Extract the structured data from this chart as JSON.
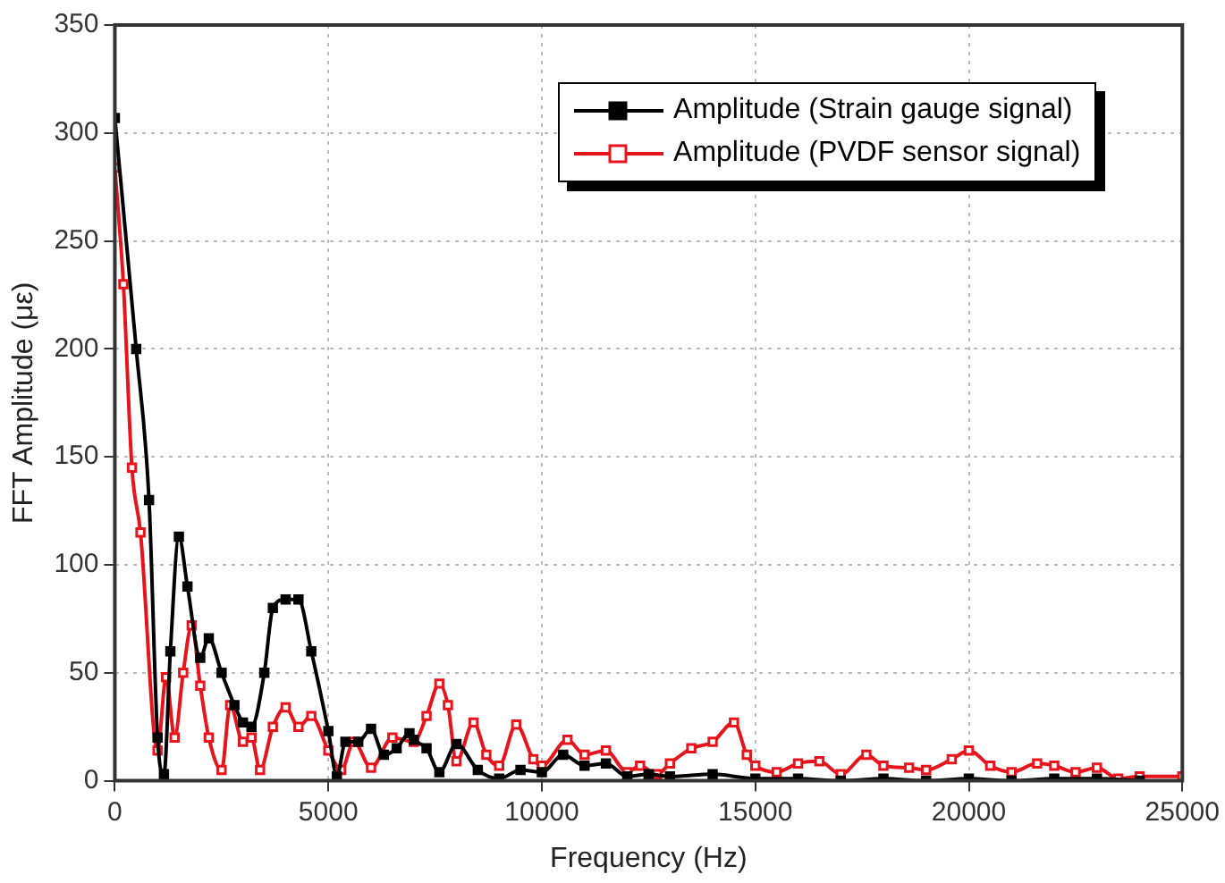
{
  "chart_data": {
    "type": "line",
    "xlabel": "Frequency (Hz)",
    "ylabel": "FFT Amplitude (με)",
    "xlim": [
      0,
      25000
    ],
    "ylim": [
      0,
      350
    ],
    "xticks": [
      0,
      5000,
      10000,
      15000,
      20000,
      25000
    ],
    "yticks": [
      0,
      50,
      100,
      150,
      200,
      250,
      300,
      350
    ],
    "grid": true,
    "legend": "top right",
    "marker": "square",
    "line_style": "solid",
    "series": [
      {
        "name": "Amplitude (Strain gauge signal)",
        "color": "#000000",
        "x": [
          0,
          500,
          800,
          1000,
          1150,
          1300,
          1500,
          1700,
          2000,
          2200,
          2500,
          2800,
          3000,
          3200,
          3500,
          3700,
          4000,
          4300,
          4600,
          5000,
          5200,
          5400,
          5700,
          6000,
          6300,
          6600,
          6900,
          7000,
          7300,
          7600,
          8000,
          8500,
          9000,
          9500,
          10000,
          10500,
          11000,
          11500,
          12000,
          12500,
          13000,
          14000,
          15000,
          16000,
          17000,
          18000,
          19000,
          20000,
          21000,
          22000,
          23000,
          24000
        ],
        "values": [
          307,
          200,
          130,
          20,
          3,
          60,
          113,
          90,
          57,
          66,
          50,
          35,
          27,
          25,
          50,
          80,
          84,
          84,
          60,
          23,
          2,
          18,
          18,
          24,
          12,
          15,
          22,
          19,
          15,
          4,
          17,
          5,
          1,
          5,
          4,
          12,
          7,
          8,
          2,
          3,
          2,
          3,
          1,
          1,
          0,
          1,
          0,
          1,
          0,
          1,
          1,
          0
        ]
      },
      {
        "name": "Amplitude (PVDF sensor signal)",
        "color": "#e8141c",
        "x": [
          0,
          200,
          400,
          600,
          1000,
          1200,
          1400,
          1600,
          1800,
          2000,
          2200,
          2500,
          2700,
          3000,
          3200,
          3400,
          3700,
          4000,
          4300,
          4600,
          5000,
          5300,
          5600,
          6000,
          6500,
          7000,
          7300,
          7600,
          7800,
          8000,
          8400,
          8700,
          9000,
          9400,
          9800,
          10000,
          10600,
          11000,
          11500,
          12000,
          12300,
          12700,
          13000,
          13500,
          14000,
          14500,
          14800,
          15000,
          15500,
          16000,
          16500,
          17000,
          17600,
          18000,
          18600,
          19000,
          19600,
          20000,
          20500,
          21000,
          21600,
          22000,
          22500,
          23000,
          23500,
          24000,
          25000
        ],
        "values": [
          284,
          230,
          145,
          115,
          14,
          48,
          20,
          50,
          72,
          44,
          20,
          5,
          35,
          18,
          20,
          5,
          25,
          34,
          25,
          30,
          14,
          5,
          18,
          6,
          20,
          18,
          30,
          45,
          35,
          9,
          27,
          12,
          7,
          26,
          10,
          7,
          19,
          12,
          14,
          4,
          7,
          3,
          8,
          15,
          18,
          27,
          12,
          7,
          4,
          8,
          9,
          3,
          12,
          7,
          6,
          5,
          10,
          14,
          7,
          4,
          8,
          7,
          4,
          6,
          1,
          2,
          2
        ]
      }
    ]
  }
}
